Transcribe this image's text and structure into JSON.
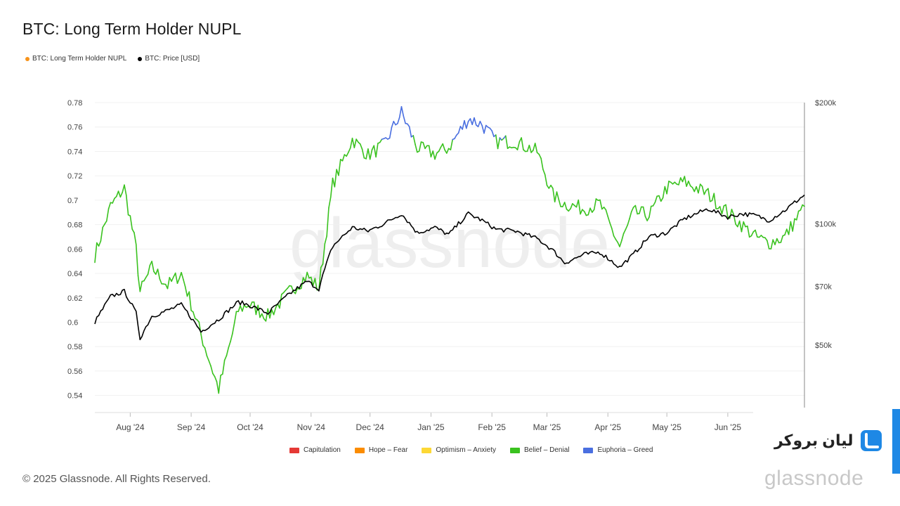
{
  "chart_data": {
    "type": "line",
    "title": "BTC: Long Term Holder NUPL",
    "legend": [
      {
        "name": "BTC: Long Term Holder NUPL",
        "color": "#f7931a"
      },
      {
        "name": "BTC: Price [USD]",
        "color": "#000000"
      }
    ],
    "x_ticks": [
      "Aug '24",
      "Sep '24",
      "Oct '24",
      "Nov '24",
      "Dec '24",
      "Jan '25",
      "Feb '25",
      "Mar '25",
      "Apr '25",
      "May '25",
      "Jun '25"
    ],
    "y_left_ticks": [
      "0.78",
      "0.76",
      "0.74",
      "0.72",
      "0.7",
      "0.68",
      "0.66",
      "0.64",
      "0.62",
      "0.6",
      "0.58",
      "0.56",
      "0.54"
    ],
    "y_right_ticks": [
      "$200k",
      "$100k",
      "$70k",
      "$50k"
    ],
    "ylim_left": [
      0.53,
      0.78
    ],
    "ylim_right_log": [
      35000,
      200000
    ],
    "x_range": [
      "2024-07-14",
      "2025-07-10"
    ],
    "zones": [
      {
        "name": "Capitulation",
        "color": "#e53935"
      },
      {
        "name": "Hope – Fear",
        "color": "#fb8c00"
      },
      {
        "name": "Optimism – Anxiety",
        "color": "#fdd835"
      },
      {
        "name": "Belief – Denial",
        "color": "#3ac21f"
      },
      {
        "name": "Euphoria – Greed",
        "color": "#4a6fe0"
      }
    ],
    "euphoria_threshold": 0.75,
    "series": [
      {
        "name": "BTC: Long Term Holder NUPL",
        "x": [
          "2024-07-14",
          "2024-07-22",
          "2024-07-29",
          "2024-08-04",
          "2024-08-06",
          "2024-08-12",
          "2024-08-20",
          "2024-08-27",
          "2024-09-06",
          "2024-09-15",
          "2024-09-25",
          "2024-09-30",
          "2024-10-10",
          "2024-10-21",
          "2024-10-30",
          "2024-11-05",
          "2024-11-12",
          "2024-11-22",
          "2024-11-30",
          "2024-12-08",
          "2024-12-17",
          "2024-12-25",
          "2025-01-03",
          "2025-01-10",
          "2025-01-20",
          "2025-01-27",
          "2025-02-03",
          "2025-02-13",
          "2025-02-24",
          "2025-03-04",
          "2025-03-10",
          "2025-03-20",
          "2025-03-28",
          "2025-04-07",
          "2025-04-14",
          "2025-04-22",
          "2025-05-01",
          "2025-05-10",
          "2025-05-22",
          "2025-06-01",
          "2025-06-08",
          "2025-06-15",
          "2025-06-22",
          "2025-06-30",
          "2025-07-10"
        ],
        "values": [
          0.655,
          0.695,
          0.71,
          0.66,
          0.625,
          0.645,
          0.63,
          0.64,
          0.59,
          0.545,
          0.61,
          0.615,
          0.605,
          0.625,
          0.638,
          0.628,
          0.713,
          0.75,
          0.737,
          0.745,
          0.772,
          0.743,
          0.738,
          0.743,
          0.767,
          0.762,
          0.748,
          0.748,
          0.74,
          0.704,
          0.697,
          0.693,
          0.697,
          0.662,
          0.69,
          0.688,
          0.71,
          0.715,
          0.705,
          0.69,
          0.68,
          0.67,
          0.665,
          0.67,
          0.695
        ]
      },
      {
        "name": "BTC: Price [USD]",
        "x": [
          "2024-07-14",
          "2024-07-22",
          "2024-07-29",
          "2024-08-04",
          "2024-08-06",
          "2024-08-12",
          "2024-08-20",
          "2024-08-27",
          "2024-09-06",
          "2024-09-15",
          "2024-09-25",
          "2024-09-30",
          "2024-10-10",
          "2024-10-21",
          "2024-10-30",
          "2024-11-05",
          "2024-11-12",
          "2024-11-22",
          "2024-11-30",
          "2024-12-08",
          "2024-12-17",
          "2024-12-25",
          "2025-01-03",
          "2025-01-10",
          "2025-01-20",
          "2025-01-27",
          "2025-02-03",
          "2025-02-13",
          "2025-02-24",
          "2025-03-04",
          "2025-03-10",
          "2025-03-20",
          "2025-03-28",
          "2025-04-07",
          "2025-04-14",
          "2025-04-22",
          "2025-05-01",
          "2025-05-10",
          "2025-05-22",
          "2025-06-01",
          "2025-06-08",
          "2025-06-15",
          "2025-06-22",
          "2025-06-30",
          "2025-07-10"
        ],
        "values": [
          57000,
          66000,
          68000,
          60000,
          52000,
          59000,
          61000,
          63000,
          54000,
          58000,
          64000,
          63000,
          60000,
          67000,
          72000,
          69000,
          88000,
          98000,
          96000,
          100000,
          106000,
          95000,
          98000,
          94000,
          106000,
          102000,
          97000,
          96000,
          92000,
          86000,
          80000,
          84000,
          85000,
          78000,
          84000,
          93000,
          95000,
          103000,
          109000,
          104000,
          106000,
          105000,
          102000,
          108000,
          118000
        ]
      }
    ]
  },
  "footer": {
    "copyright": "© 2025 Glassnode. All Rights Reserved."
  },
  "brand": {
    "name": "لیان بروکر",
    "watermark": "glassnode"
  }
}
